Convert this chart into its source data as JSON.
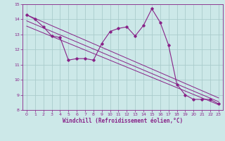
{
  "xlabel": "Windchill (Refroidissement éolien,°C)",
  "bg_color": "#cce8e8",
  "line_color": "#882288",
  "grid_color": "#aacccc",
  "xlim": [
    -0.5,
    23.5
  ],
  "ylim": [
    8,
    15
  ],
  "xticks": [
    0,
    1,
    2,
    3,
    4,
    5,
    6,
    7,
    8,
    9,
    10,
    11,
    12,
    13,
    14,
    15,
    16,
    17,
    18,
    19,
    20,
    21,
    22,
    23
  ],
  "yticks": [
    8,
    9,
    10,
    11,
    12,
    13,
    14,
    15
  ],
  "main_series_x": [
    0,
    1,
    2,
    3,
    4,
    5,
    6,
    7,
    8,
    9,
    10,
    11,
    12,
    13,
    14,
    15,
    16,
    17,
    18,
    19,
    20,
    21,
    22,
    23
  ],
  "main_series_y": [
    14.3,
    14.0,
    13.5,
    12.9,
    12.8,
    11.3,
    11.4,
    11.4,
    11.3,
    12.4,
    13.2,
    13.4,
    13.5,
    12.9,
    13.6,
    14.7,
    13.8,
    12.3,
    9.7,
    9.0,
    8.7,
    8.7,
    8.7,
    8.4
  ],
  "line1_y": [
    14.3,
    8.8
  ],
  "line2_y": [
    13.9,
    8.55
  ],
  "line3_y": [
    13.55,
    8.35
  ]
}
